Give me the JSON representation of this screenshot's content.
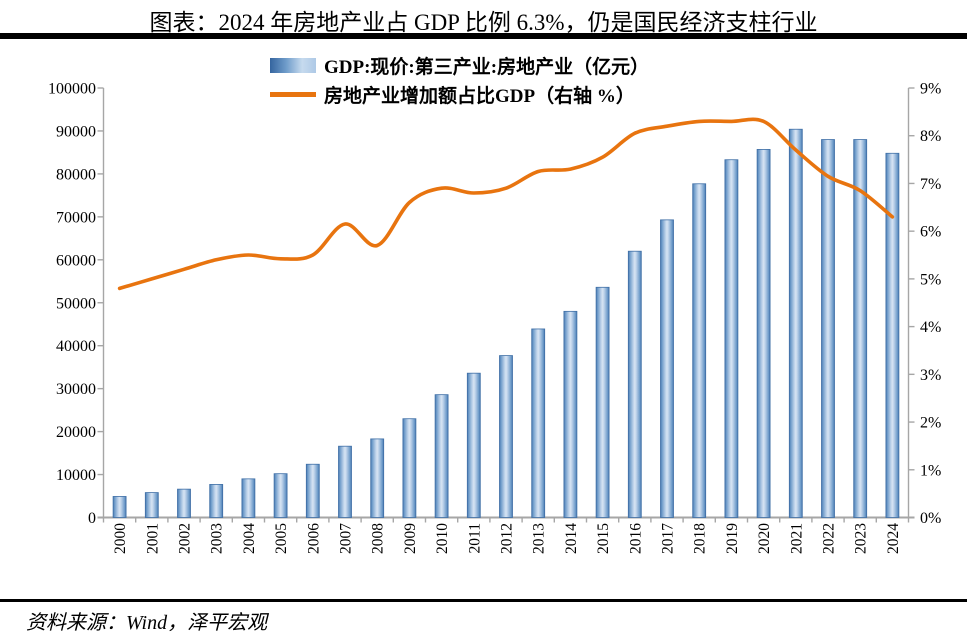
{
  "title": "图表：2024 年房地产业占 GDP 比例 6.3%，仍是国民经济支柱行业",
  "source": "资料来源：Wind，泽平宏观",
  "legend": {
    "bar_label": "GDP:现价:第三产业:房地产业（亿元）",
    "line_label": "房地产业增加额占比GDP（右轴 %）"
  },
  "colors": {
    "bar_edge": "#3f6fa6",
    "bar_mid": "#6f9cca",
    "bar_light": "#d7e4f3",
    "line": "#e8740f",
    "axis": "#a6a6a6",
    "text": "#000000"
  },
  "chart_data": {
    "type": "bar+line combo",
    "title": "图表：2024 年房地产业占 GDP 比例 6.3%，仍是国民经济支柱行业",
    "categories": [
      "2000",
      "2001",
      "2002",
      "2003",
      "2004",
      "2005",
      "2006",
      "2007",
      "2008",
      "2009",
      "2010",
      "2011",
      "2012",
      "2013",
      "2014",
      "2015",
      "2016",
      "2017",
      "2018",
      "2019",
      "2020",
      "2021",
      "2022",
      "2023",
      "2024"
    ],
    "series": [
      {
        "name": "GDP:现价:第三产业:房地产业（亿元）",
        "type": "bar",
        "axis": "left",
        "values": [
          4900,
          5800,
          6600,
          7700,
          9000,
          10200,
          12400,
          16600,
          18300,
          23000,
          28600,
          33600,
          37700,
          43900,
          48000,
          53600,
          62000,
          69300,
          77700,
          83300,
          85700,
          90400,
          88000,
          88000,
          84800
        ]
      },
      {
        "name": "房地产业增加额占比GDP（右轴 %）",
        "type": "line",
        "axis": "right",
        "values": [
          4.8,
          5.0,
          5.2,
          5.4,
          5.5,
          5.42,
          5.5,
          6.15,
          5.7,
          6.6,
          6.9,
          6.8,
          6.9,
          7.25,
          7.3,
          7.55,
          8.05,
          8.2,
          8.3,
          8.3,
          8.3,
          7.7,
          7.15,
          6.85,
          6.3
        ]
      }
    ],
    "left_axis": {
      "min": 0,
      "max": 100000,
      "step": 10000,
      "ticks": [
        "0",
        "10000",
        "20000",
        "30000",
        "40000",
        "50000",
        "60000",
        "70000",
        "80000",
        "90000",
        "100000"
      ]
    },
    "right_axis": {
      "min": 0,
      "max": 9,
      "step": 1,
      "ticks": [
        "0%",
        "1%",
        "2%",
        "3%",
        "4%",
        "5%",
        "6%",
        "7%",
        "8%",
        "9%"
      ]
    },
    "legend_position": "top",
    "grid": false
  }
}
